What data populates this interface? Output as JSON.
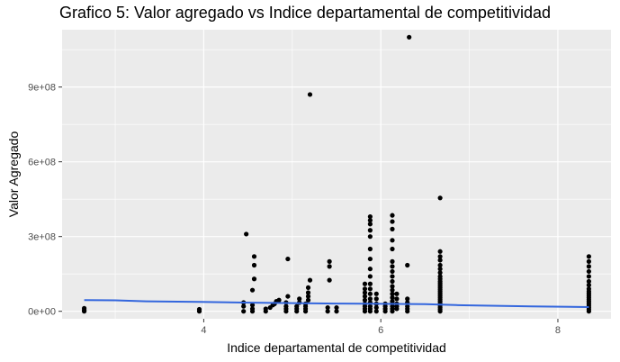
{
  "chart_data": {
    "type": "scatter",
    "title": "Grafico 5: Valor agregado vs Indice departamental de competitividad",
    "xlabel": "Indice departamental de competitividad",
    "ylabel": "Valor Agregado",
    "xlim": [
      2.4,
      8.6
    ],
    "ylim": [
      -30000000,
      1130000000
    ],
    "x_ticks": [
      4,
      6,
      8
    ],
    "x_tick_labels": [
      "4",
      "6",
      "8"
    ],
    "y_ticks": [
      0,
      300000000,
      600000000,
      900000000
    ],
    "y_tick_labels": [
      "0e+00",
      "3e+08",
      "6e+08",
      "9e+08"
    ],
    "grid": true,
    "background": "#ebebeb",
    "point_color": "#000000",
    "trend_color": "#3366dd",
    "points": [
      [
        2.65,
        0
      ],
      [
        2.65,
        5000000
      ],
      [
        2.65,
        12000000
      ],
      [
        3.95,
        0
      ],
      [
        3.95,
        8000000
      ],
      [
        4.45,
        0
      ],
      [
        4.45,
        20000000
      ],
      [
        4.45,
        35000000
      ],
      [
        4.48,
        310000000
      ],
      [
        4.55,
        0
      ],
      [
        4.55,
        10000000
      ],
      [
        4.55,
        25000000
      ],
      [
        4.55,
        85000000
      ],
      [
        4.57,
        130000000
      ],
      [
        4.57,
        185000000
      ],
      [
        4.57,
        220000000
      ],
      [
        4.7,
        0
      ],
      [
        4.7,
        10000000
      ],
      [
        4.75,
        15000000
      ],
      [
        4.78,
        25000000
      ],
      [
        4.8,
        30000000
      ],
      [
        4.82,
        40000000
      ],
      [
        4.85,
        45000000
      ],
      [
        4.93,
        0
      ],
      [
        4.93,
        10000000
      ],
      [
        4.93,
        20000000
      ],
      [
        4.93,
        35000000
      ],
      [
        4.95,
        60000000
      ],
      [
        4.95,
        210000000
      ],
      [
        5.05,
        0
      ],
      [
        5.05,
        10000000
      ],
      [
        5.05,
        20000000
      ],
      [
        5.08,
        35000000
      ],
      [
        5.08,
        50000000
      ],
      [
        5.15,
        0
      ],
      [
        5.15,
        10000000
      ],
      [
        5.15,
        20000000
      ],
      [
        5.15,
        30000000
      ],
      [
        5.18,
        45000000
      ],
      [
        5.18,
        60000000
      ],
      [
        5.18,
        75000000
      ],
      [
        5.18,
        95000000
      ],
      [
        5.2,
        125000000
      ],
      [
        5.2,
        870000000
      ],
      [
        5.4,
        0
      ],
      [
        5.4,
        15000000
      ],
      [
        5.42,
        125000000
      ],
      [
        5.42,
        180000000
      ],
      [
        5.42,
        200000000
      ],
      [
        5.5,
        0
      ],
      [
        5.5,
        15000000
      ],
      [
        5.82,
        0
      ],
      [
        5.82,
        10000000
      ],
      [
        5.82,
        20000000
      ],
      [
        5.82,
        30000000
      ],
      [
        5.82,
        45000000
      ],
      [
        5.82,
        60000000
      ],
      [
        5.82,
        75000000
      ],
      [
        5.82,
        90000000
      ],
      [
        5.82,
        110000000
      ],
      [
        5.88,
        0
      ],
      [
        5.88,
        10000000
      ],
      [
        5.88,
        20000000
      ],
      [
        5.88,
        35000000
      ],
      [
        5.88,
        50000000
      ],
      [
        5.88,
        70000000
      ],
      [
        5.88,
        90000000
      ],
      [
        5.88,
        110000000
      ],
      [
        5.88,
        140000000
      ],
      [
        5.88,
        170000000
      ],
      [
        5.88,
        210000000
      ],
      [
        5.88,
        250000000
      ],
      [
        5.88,
        300000000
      ],
      [
        5.88,
        325000000
      ],
      [
        5.88,
        350000000
      ],
      [
        5.88,
        365000000
      ],
      [
        5.88,
        380000000
      ],
      [
        5.95,
        0
      ],
      [
        5.95,
        15000000
      ],
      [
        5.95,
        30000000
      ],
      [
        5.95,
        50000000
      ],
      [
        5.95,
        70000000
      ],
      [
        6.05,
        0
      ],
      [
        6.05,
        10000000
      ],
      [
        6.05,
        20000000
      ],
      [
        6.05,
        30000000
      ],
      [
        6.13,
        0
      ],
      [
        6.13,
        10000000
      ],
      [
        6.13,
        20000000
      ],
      [
        6.13,
        30000000
      ],
      [
        6.13,
        40000000
      ],
      [
        6.13,
        55000000
      ],
      [
        6.13,
        70000000
      ],
      [
        6.13,
        85000000
      ],
      [
        6.13,
        100000000
      ],
      [
        6.13,
        120000000
      ],
      [
        6.13,
        140000000
      ],
      [
        6.13,
        160000000
      ],
      [
        6.13,
        180000000
      ],
      [
        6.13,
        200000000
      ],
      [
        6.13,
        250000000
      ],
      [
        6.13,
        285000000
      ],
      [
        6.13,
        330000000
      ],
      [
        6.13,
        360000000
      ],
      [
        6.13,
        385000000
      ],
      [
        6.18,
        10000000
      ],
      [
        6.18,
        20000000
      ],
      [
        6.18,
        30000000
      ],
      [
        6.18,
        50000000
      ],
      [
        6.18,
        70000000
      ],
      [
        6.3,
        0
      ],
      [
        6.3,
        10000000
      ],
      [
        6.3,
        20000000
      ],
      [
        6.3,
        35000000
      ],
      [
        6.3,
        50000000
      ],
      [
        6.3,
        185000000
      ],
      [
        6.32,
        1100000000
      ],
      [
        6.67,
        0
      ],
      [
        6.67,
        8000000
      ],
      [
        6.67,
        16000000
      ],
      [
        6.67,
        24000000
      ],
      [
        6.67,
        32000000
      ],
      [
        6.67,
        40000000
      ],
      [
        6.67,
        48000000
      ],
      [
        6.67,
        56000000
      ],
      [
        6.67,
        64000000
      ],
      [
        6.67,
        72000000
      ],
      [
        6.67,
        80000000
      ],
      [
        6.67,
        88000000
      ],
      [
        6.67,
        96000000
      ],
      [
        6.67,
        104000000
      ],
      [
        6.67,
        112000000
      ],
      [
        6.67,
        120000000
      ],
      [
        6.67,
        130000000
      ],
      [
        6.67,
        140000000
      ],
      [
        6.67,
        155000000
      ],
      [
        6.67,
        170000000
      ],
      [
        6.67,
        185000000
      ],
      [
        6.67,
        205000000
      ],
      [
        6.67,
        220000000
      ],
      [
        6.67,
        240000000
      ],
      [
        6.67,
        455000000
      ],
      [
        8.35,
        0
      ],
      [
        8.35,
        8000000
      ],
      [
        8.35,
        16000000
      ],
      [
        8.35,
        24000000
      ],
      [
        8.35,
        32000000
      ],
      [
        8.35,
        40000000
      ],
      [
        8.35,
        48000000
      ],
      [
        8.35,
        56000000
      ],
      [
        8.35,
        64000000
      ],
      [
        8.35,
        72000000
      ],
      [
        8.35,
        80000000
      ],
      [
        8.35,
        90000000
      ],
      [
        8.35,
        105000000
      ],
      [
        8.35,
        120000000
      ],
      [
        8.35,
        140000000
      ],
      [
        8.35,
        160000000
      ],
      [
        8.35,
        180000000
      ],
      [
        8.35,
        200000000
      ],
      [
        8.35,
        220000000
      ]
    ],
    "trend": [
      [
        2.65,
        45000000
      ],
      [
        3.0,
        44000000
      ],
      [
        3.35,
        40000000
      ],
      [
        3.95,
        38000000
      ],
      [
        4.45,
        35000000
      ],
      [
        5.0,
        33000000
      ],
      [
        5.5,
        31000000
      ],
      [
        6.0,
        30000000
      ],
      [
        6.5,
        29000000
      ],
      [
        6.85,
        25000000
      ],
      [
        7.7,
        20000000
      ],
      [
        8.35,
        17000000
      ]
    ]
  }
}
